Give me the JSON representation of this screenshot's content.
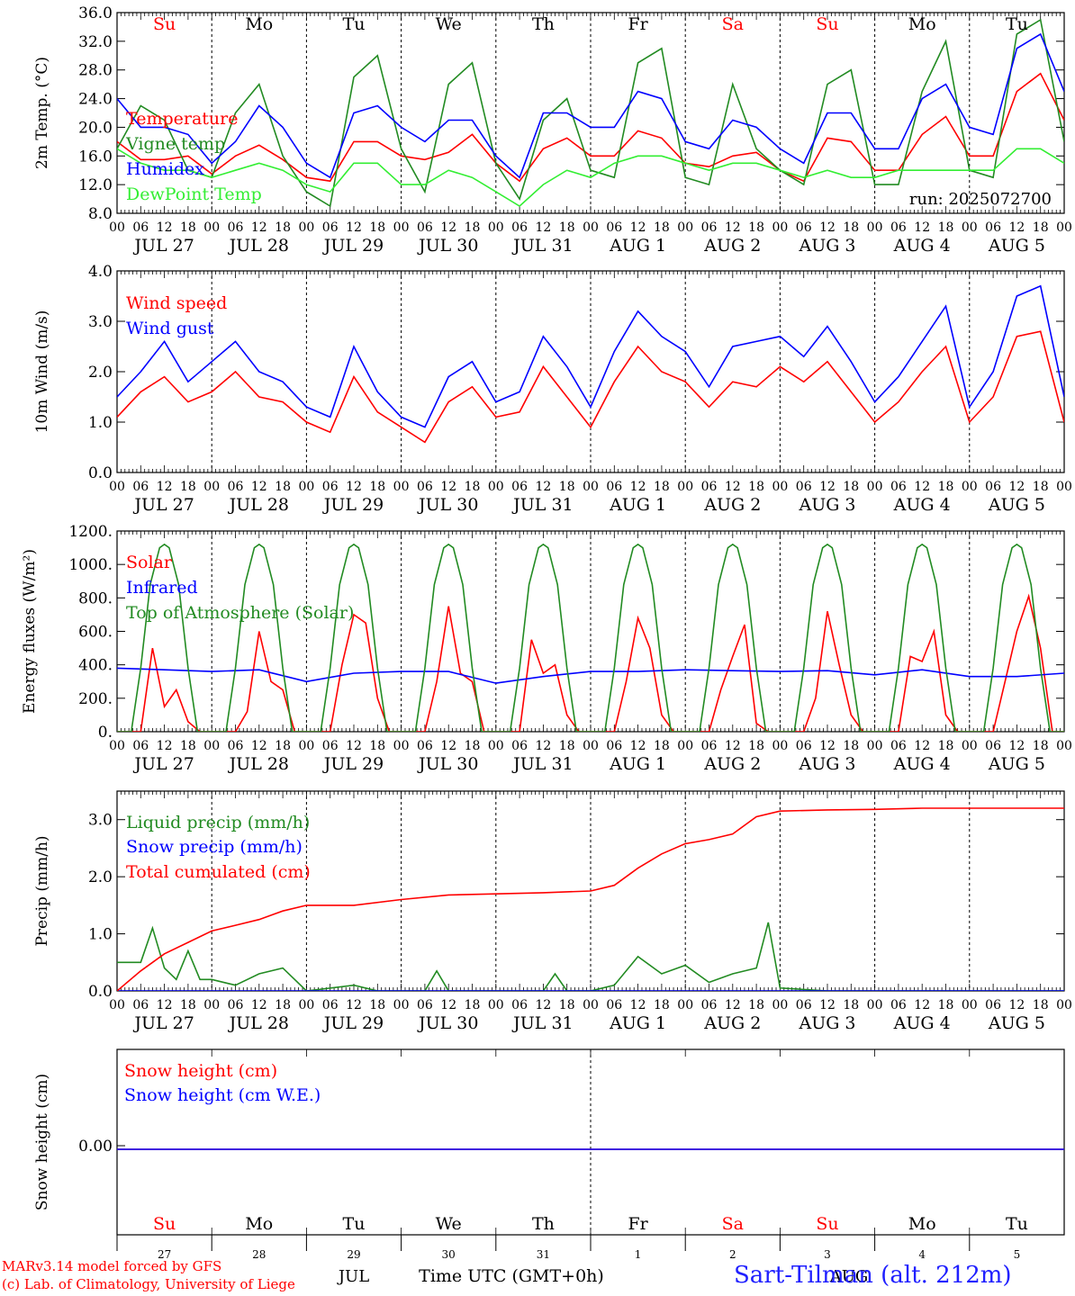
{
  "run_label": "run: 2025072700",
  "x_axis": {
    "hour_labels": [
      "00",
      "06",
      "12",
      "18"
    ],
    "date_labels": [
      "JUL 27",
      "JUL 28",
      "JUL 29",
      "JUL 30",
      "JUL 31",
      "AUG  1",
      "AUG  2",
      "AUG  3",
      "AUG  4",
      "AUG  5"
    ],
    "weekdays": [
      "Su",
      "Mo",
      "Tu",
      "We",
      "Th",
      "Fr",
      "Sa",
      "Su",
      "Mo",
      "Tu"
    ],
    "weekday_colors": [
      "#ff0000",
      "#000000",
      "#000000",
      "#000000",
      "#000000",
      "#000000",
      "#ff0000",
      "#ff0000",
      "#000000",
      "#000000"
    ],
    "bottom_day_numbers": [
      "27",
      "28",
      "29",
      "30",
      "31",
      "1",
      "2",
      "3",
      "4",
      "5"
    ],
    "bottom_month_left": "JUL",
    "bottom_month_right": "AUG",
    "time_label": "Time UTC (GMT+0h)"
  },
  "footer": {
    "model_line": "MARv3.14 model forced by GFS",
    "lab_line": "(c) Lab. of Climatology, University of Liege",
    "station": "Sart-Tilman (alt. 212m)"
  },
  "colors": {
    "red": "#ff0000",
    "blue": "#0000ff",
    "green": "#228b22",
    "lightgreen": "#33ee33"
  },
  "chart_data": [
    {
      "type": "line",
      "ylabel": "2m Temp. (°C)",
      "ylim": [
        8,
        36
      ],
      "ytick_labels": [
        "8.0",
        "12.0",
        "16.0",
        "20.0",
        "24.0",
        "28.0",
        "32.0",
        "36.0"
      ],
      "show_weekdays": true,
      "show_run": true,
      "x_days": 10,
      "series": [
        {
          "name": "Temperature",
          "color": "red",
          "x": [
            0,
            0.25,
            0.5,
            0.75,
            1,
            1.25,
            1.5,
            1.75,
            2,
            2.25,
            2.5,
            2.75,
            3,
            3.25,
            3.5,
            3.75,
            4,
            4.25,
            4.5,
            4.75,
            5,
            5.25,
            5.5,
            5.75,
            6,
            6.25,
            6.5,
            6.75,
            7,
            7.25,
            7.5,
            7.75,
            8,
            8.25,
            8.5,
            8.75,
            9,
            9.25,
            9.5,
            9.75,
            10
          ],
          "values": [
            18,
            15.5,
            15.5,
            16,
            13.5,
            16,
            17.5,
            15.5,
            13,
            12.5,
            18,
            18,
            16,
            15.5,
            16.5,
            19,
            15,
            12.5,
            17,
            18.5,
            16,
            16,
            19.5,
            18.5,
            15,
            14.5,
            16,
            16.5,
            14,
            12.5,
            18.5,
            18,
            14,
            14,
            19,
            21.5,
            16,
            16,
            25,
            27.5,
            21
          ]
        },
        {
          "name": "Vigne temp",
          "color": "green",
          "x": [
            0,
            0.25,
            0.5,
            0.75,
            1,
            1.25,
            1.5,
            1.75,
            2,
            2.25,
            2.5,
            2.75,
            3,
            3.25,
            3.5,
            3.75,
            4,
            4.25,
            4.5,
            4.75,
            5,
            5.25,
            5.5,
            5.75,
            6,
            6.25,
            6.5,
            6.75,
            7,
            7.25,
            7.5,
            7.75,
            8,
            8.25,
            8.5,
            8.75,
            9,
            9.25,
            9.5,
            9.75,
            10
          ],
          "values": [
            17,
            23,
            21,
            14,
            13,
            22,
            26,
            16,
            11,
            9,
            27,
            30,
            17,
            11,
            26,
            29,
            15,
            10,
            21,
            24,
            14,
            13,
            29,
            31,
            13,
            12,
            26,
            17,
            14,
            12,
            26,
            28,
            12,
            12,
            25,
            32,
            14,
            13,
            33,
            35,
            18
          ]
        },
        {
          "name": "Humidex",
          "color": "blue",
          "x": [
            0,
            0.25,
            0.5,
            0.75,
            1,
            1.25,
            1.5,
            1.75,
            2,
            2.25,
            2.5,
            2.75,
            3,
            3.25,
            3.5,
            3.75,
            4,
            4.25,
            4.5,
            4.75,
            5,
            5.25,
            5.5,
            5.75,
            6,
            6.25,
            6.5,
            6.75,
            7,
            7.25,
            7.5,
            7.75,
            8,
            8.25,
            8.5,
            8.75,
            9,
            9.25,
            9.5,
            9.75,
            10
          ],
          "values": [
            24,
            20,
            20,
            19,
            15,
            18,
            23,
            20,
            15,
            13,
            22,
            23,
            20,
            18,
            21,
            21,
            16,
            13,
            22,
            22,
            20,
            20,
            25,
            24,
            18,
            17,
            21,
            20,
            17,
            15,
            22,
            22,
            17,
            17,
            24,
            26,
            20,
            19,
            31,
            33,
            25
          ]
        },
        {
          "name": "DewPoint Temp",
          "color": "lightgreen",
          "x": [
            0,
            0.25,
            0.5,
            0.75,
            1,
            1.25,
            1.5,
            1.75,
            2,
            2.25,
            2.5,
            2.75,
            3,
            3.25,
            3.5,
            3.75,
            4,
            4.25,
            4.5,
            4.75,
            5,
            5.25,
            5.5,
            5.75,
            6,
            6.25,
            6.5,
            6.75,
            7,
            7.25,
            7.5,
            7.75,
            8,
            8.25,
            8.5,
            8.75,
            9,
            9.25,
            9.5,
            9.75,
            10
          ],
          "values": [
            17,
            15,
            14,
            14,
            13,
            14,
            15,
            14,
            12,
            11,
            15,
            15,
            12,
            12,
            14,
            13,
            11,
            9,
            12,
            14,
            13,
            15,
            16,
            16,
            15,
            14,
            15,
            15,
            14,
            13,
            14,
            13,
            13,
            14,
            14,
            14,
            14,
            14,
            17,
            17,
            15
          ]
        }
      ]
    },
    {
      "type": "line",
      "ylabel": "10m Wind (m/s)",
      "ylim": [
        0,
        4
      ],
      "ytick_labels": [
        "0.0",
        "1.0",
        "2.0",
        "3.0",
        "4.0"
      ],
      "x_days": 10,
      "series": [
        {
          "name": "Wind speed",
          "color": "red",
          "x": [
            0,
            0.25,
            0.5,
            0.75,
            1,
            1.25,
            1.5,
            1.75,
            2,
            2.25,
            2.5,
            2.75,
            3,
            3.25,
            3.5,
            3.75,
            4,
            4.25,
            4.5,
            4.75,
            5,
            5.25,
            5.5,
            5.75,
            6,
            6.25,
            6.5,
            6.75,
            7,
            7.25,
            7.5,
            7.75,
            8,
            8.25,
            8.5,
            8.75,
            9,
            9.25,
            9.5,
            9.75,
            10
          ],
          "values": [
            1.1,
            1.6,
            1.9,
            1.4,
            1.6,
            2.0,
            1.5,
            1.4,
            1.0,
            0.8,
            1.9,
            1.2,
            0.9,
            0.6,
            1.4,
            1.7,
            1.1,
            1.2,
            2.1,
            1.5,
            0.9,
            1.8,
            2.5,
            2.0,
            1.8,
            1.3,
            1.8,
            1.7,
            2.1,
            1.8,
            2.2,
            1.6,
            1.0,
            1.4,
            2.0,
            2.5,
            1.0,
            1.5,
            2.7,
            2.8,
            1.0
          ]
        },
        {
          "name": "Wind gust",
          "color": "blue",
          "x": [
            0,
            0.25,
            0.5,
            0.75,
            1,
            1.25,
            1.5,
            1.75,
            2,
            2.25,
            2.5,
            2.75,
            3,
            3.25,
            3.5,
            3.75,
            4,
            4.25,
            4.5,
            4.75,
            5,
            5.25,
            5.5,
            5.75,
            6,
            6.25,
            6.5,
            6.75,
            7,
            7.25,
            7.5,
            7.75,
            8,
            8.25,
            8.5,
            8.75,
            9,
            9.25,
            9.5,
            9.75,
            10
          ],
          "values": [
            1.5,
            2.0,
            2.6,
            1.8,
            2.2,
            2.6,
            2.0,
            1.8,
            1.3,
            1.1,
            2.5,
            1.6,
            1.1,
            0.9,
            1.9,
            2.2,
            1.4,
            1.6,
            2.7,
            2.1,
            1.3,
            2.4,
            3.2,
            2.7,
            2.4,
            1.7,
            2.5,
            2.6,
            2.7,
            2.3,
            2.9,
            2.2,
            1.4,
            1.9,
            2.6,
            3.3,
            1.3,
            2.0,
            3.5,
            3.7,
            1.5
          ]
        }
      ]
    },
    {
      "type": "line",
      "ylabel": "Energy fluxes (W/m²)",
      "ylim": [
        0,
        1200
      ],
      "ytick_labels": [
        "0.",
        "200.",
        "400.",
        "600.",
        "800.",
        "1000.",
        "1200."
      ],
      "x_days": 10,
      "series": [
        {
          "name": "Solar",
          "color": "red",
          "x": [
            0,
            0.25,
            0.375,
            0.5,
            0.625,
            0.75,
            0.875,
            1,
            1.25,
            1.375,
            1.5,
            1.625,
            1.75,
            1.875,
            2,
            2.25,
            2.375,
            2.5,
            2.625,
            2.75,
            2.875,
            3,
            3.25,
            3.375,
            3.5,
            3.625,
            3.75,
            3.875,
            4,
            4.25,
            4.375,
            4.5,
            4.625,
            4.75,
            4.875,
            5,
            5.25,
            5.375,
            5.5,
            5.625,
            5.75,
            5.875,
            6,
            6.25,
            6.375,
            6.5,
            6.625,
            6.75,
            6.875,
            7,
            7.25,
            7.375,
            7.5,
            7.625,
            7.75,
            7.875,
            8,
            8.25,
            8.375,
            8.5,
            8.625,
            8.75,
            8.875,
            9,
            9.25,
            9.375,
            9.5,
            9.625,
            9.75,
            9.875,
            10
          ],
          "values": [
            0,
            0,
            500,
            150,
            250,
            60,
            0,
            0,
            0,
            120,
            600,
            300,
            250,
            0,
            0,
            0,
            400,
            700,
            650,
            200,
            0,
            0,
            0,
            300,
            750,
            350,
            300,
            0,
            0,
            0,
            550,
            350,
            400,
            100,
            0,
            0,
            0,
            300,
            680,
            500,
            100,
            0,
            0,
            0,
            250,
            450,
            640,
            50,
            0,
            0,
            0,
            200,
            720,
            400,
            100,
            0,
            0,
            0,
            450,
            420,
            600,
            100,
            0,
            0,
            0,
            300,
            600,
            810,
            500,
            0,
            0
          ]
        },
        {
          "name": "Infrared",
          "color": "blue",
          "x": [
            0,
            0.5,
            1,
            1.5,
            2,
            2.5,
            3,
            3.5,
            4,
            4.5,
            5,
            5.5,
            6,
            6.5,
            7,
            7.5,
            8,
            8.5,
            9,
            9.5,
            10
          ],
          "values": [
            380,
            370,
            360,
            370,
            300,
            350,
            360,
            360,
            290,
            330,
            360,
            360,
            370,
            365,
            360,
            365,
            340,
            370,
            330,
            330,
            350
          ]
        },
        {
          "name": "Top of Atmosphere (Solar)",
          "color": "green",
          "x": [
            0,
            0.15,
            0.25,
            0.35,
            0.45,
            0.5,
            0.55,
            0.65,
            0.75,
            0.85,
            1
          ],
          "values": [
            0,
            0,
            380,
            880,
            1100,
            1120,
            1100,
            880,
            380,
            0,
            0
          ],
          "repeat_days": 10
        }
      ]
    },
    {
      "type": "line",
      "ylabel": "Precip (mm/h)",
      "ylim": [
        0,
        3.5
      ],
      "ytick_labels": [
        "0.0",
        "1.0",
        "2.0",
        "3.0"
      ],
      "x_days": 10,
      "series": [
        {
          "name": "Liquid precip (mm/h)",
          "color": "green",
          "x": [
            0,
            0.125,
            0.25,
            0.375,
            0.5,
            0.625,
            0.75,
            0.875,
            1,
            1.25,
            1.5,
            1.75,
            2,
            2.5,
            2.75,
            3,
            3.25,
            3.375,
            3.5,
            4,
            4.5,
            4.625,
            4.75,
            5,
            5.25,
            5.5,
            5.75,
            6,
            6.25,
            6.5,
            6.75,
            6.875,
            7,
            7.5,
            8,
            8.5,
            9,
            10
          ],
          "values": [
            0.5,
            0.5,
            0.5,
            1.1,
            0.4,
            0.2,
            0.7,
            0.2,
            0.2,
            0.1,
            0.3,
            0.4,
            0,
            0.1,
            0,
            0,
            0,
            0.35,
            0,
            0,
            0,
            0.3,
            0,
            0,
            0.1,
            0.6,
            0.3,
            0.45,
            0.15,
            0.3,
            0.4,
            1.2,
            0.05,
            0,
            0,
            0,
            0,
            0
          ]
        },
        {
          "name": "Snow precip (mm/h)",
          "color": "blue",
          "x": [
            0,
            10
          ],
          "values": [
            0,
            0
          ]
        },
        {
          "name": "Total cumulated (cm)",
          "color": "red",
          "x": [
            0,
            0.25,
            0.5,
            0.75,
            1,
            1.25,
            1.5,
            1.75,
            2,
            2.5,
            3,
            3.5,
            4,
            4.5,
            5,
            5.25,
            5.5,
            5.75,
            6,
            6.25,
            6.5,
            6.75,
            7,
            7.5,
            8,
            8.5,
            9,
            10
          ],
          "values": [
            0,
            0.35,
            0.65,
            0.85,
            1.05,
            1.15,
            1.25,
            1.4,
            1.5,
            1.5,
            1.6,
            1.68,
            1.7,
            1.72,
            1.75,
            1.85,
            2.15,
            2.4,
            2.58,
            2.65,
            2.75,
            3.05,
            3.15,
            3.17,
            3.18,
            3.2,
            3.2,
            3.2
          ]
        }
      ]
    },
    {
      "type": "line",
      "ylabel": "Snow height (cm)",
      "ytick_labels": [
        "0.00"
      ],
      "x_days": 10,
      "series": [
        {
          "name": "Snow height (cm)",
          "color": "red",
          "x": [
            0,
            10
          ],
          "values": [
            0,
            0
          ]
        },
        {
          "name": "Snow height (cm W.E.)",
          "color": "blue",
          "x": [
            0,
            10
          ],
          "values": [
            0,
            0
          ]
        }
      ]
    }
  ]
}
